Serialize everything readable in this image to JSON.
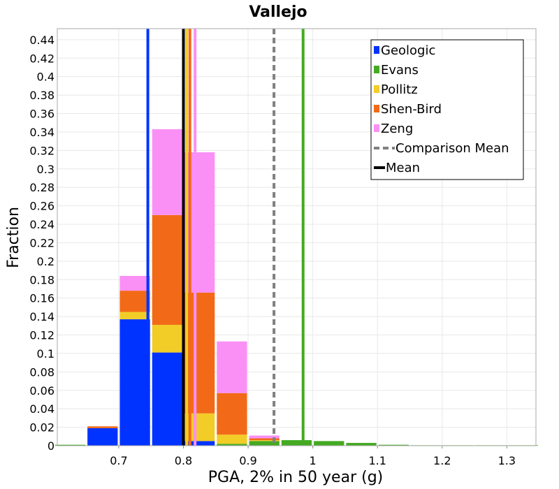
{
  "chart_data": {
    "type": "bar",
    "stacked": true,
    "title": "Vallejo",
    "xlabel": "PGA, 2% in 50 year (g)",
    "ylabel": "Fraction",
    "xlim": [
      0.605,
      1.345
    ],
    "ylim": [
      0,
      0.452
    ],
    "x_ticks": [
      0.7,
      0.8,
      0.9,
      1,
      1.1,
      1.2,
      1.3
    ],
    "x_tick_labels": [
      "0.7",
      "0.8",
      "0.9",
      "1",
      "1.1",
      "1.2",
      "1.3"
    ],
    "y_ticks": [
      0,
      0.02,
      0.04,
      0.06,
      0.08,
      0.1,
      0.12,
      0.14,
      0.16,
      0.18,
      0.2,
      0.22,
      0.24,
      0.26,
      0.28,
      0.3,
      0.32,
      0.34,
      0.36,
      0.38,
      0.4,
      0.42,
      0.44
    ],
    "y_tick_labels": [
      "0",
      "0.02",
      "0.04",
      "0.06",
      "0.08",
      "0.1",
      "0.12",
      "0.14",
      "0.16",
      "0.18",
      "0.2",
      "0.22",
      "0.24",
      "0.26",
      "0.28",
      "0.3",
      "0.32",
      "0.34",
      "0.36",
      "0.38",
      "0.4",
      "0.42",
      "0.44"
    ],
    "bin_width": 0.05,
    "bin_centers": [
      0.625,
      0.675,
      0.725,
      0.775,
      0.825,
      0.875,
      0.925,
      0.975,
      1.025,
      1.075,
      1.125,
      1.175,
      1.225,
      1.275,
      1.325
    ],
    "series": [
      {
        "name": "Geologic",
        "color": "#0033ff",
        "values": [
          0,
          0.019,
          0.137,
          0.101,
          0.005,
          0,
          0,
          0,
          0,
          0,
          0,
          0,
          0,
          0,
          0
        ]
      },
      {
        "name": "Evans",
        "color": "#44aa22",
        "values": [
          0.001,
          0,
          0,
          0,
          0,
          0.002,
          0.005,
          0.006,
          0.005,
          0.003,
          0.001,
          0.0005,
          0.0005,
          0.0005,
          0.0005
        ]
      },
      {
        "name": "Pollitz",
        "color": "#f2cc27",
        "values": [
          0,
          0,
          0.008,
          0.03,
          0.03,
          0.01,
          0.001,
          0,
          0,
          0,
          0,
          0,
          0,
          0,
          0
        ]
      },
      {
        "name": "Shen-Bird",
        "color": "#f26a18",
        "values": [
          0,
          0.002,
          0.023,
          0.119,
          0.131,
          0.045,
          0.002,
          0,
          0,
          0,
          0,
          0,
          0,
          0,
          0
        ]
      },
      {
        "name": "Zeng",
        "color": "#fa90f5",
        "values": [
          0,
          0,
          0.016,
          0.093,
          0.152,
          0.056,
          0.003,
          0,
          0,
          0,
          0,
          0,
          0,
          0,
          0
        ]
      }
    ],
    "lines": [
      {
        "name": "Geologic",
        "x": 0.745,
        "color": "#0033ff",
        "style": "solid"
      },
      {
        "name": "Evans",
        "x": 0.985,
        "color": "#44aa22",
        "style": "solid"
      },
      {
        "name": "Pollitz",
        "x": 0.805,
        "color": "#f2cc27",
        "style": "solid"
      },
      {
        "name": "Shen-Bird",
        "x": 0.81,
        "color": "#f26a18",
        "style": "solid"
      },
      {
        "name": "Zeng",
        "x": 0.818,
        "color": "#fa90f5",
        "style": "solid"
      },
      {
        "name": "Comparison Mean",
        "x": 0.94,
        "color": "#808080",
        "style": "dashed"
      },
      {
        "name": "Mean",
        "x": 0.8,
        "color": "#000000",
        "style": "solid"
      }
    ],
    "legend": {
      "position": "top-right",
      "entries": [
        {
          "label": "Geologic",
          "color": "#0033ff",
          "kind": "box"
        },
        {
          "label": "Evans",
          "color": "#44aa22",
          "kind": "box"
        },
        {
          "label": "Pollitz",
          "color": "#f2cc27",
          "kind": "box"
        },
        {
          "label": "Shen-Bird",
          "color": "#f26a18",
          "kind": "box"
        },
        {
          "label": "Zeng",
          "color": "#fa90f5",
          "kind": "box"
        },
        {
          "label": "Comparison Mean",
          "color": "#808080",
          "kind": "dashed"
        },
        {
          "label": "Mean",
          "color": "#000000",
          "kind": "line"
        }
      ]
    },
    "grid": true
  }
}
